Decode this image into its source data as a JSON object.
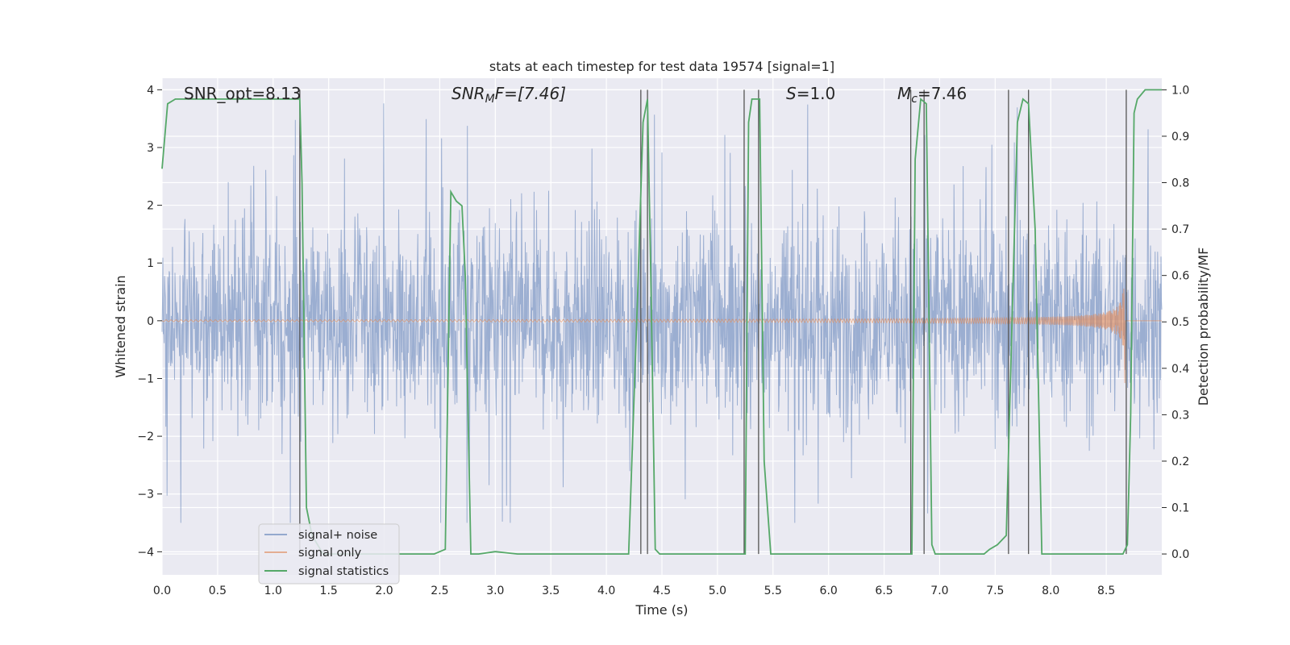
{
  "chart_data": {
    "type": "line",
    "title": "stats at each timestep for test data 19574 [signal=1]",
    "xlabel": "Time (s)",
    "ylabel_left": "Whitened strain",
    "ylabel_right": "Detection probability/MF",
    "xlim": [
      0.0,
      9.0
    ],
    "ylim_left": [
      -4.4,
      4.2
    ],
    "ylim_right": [
      -0.045,
      1.025
    ],
    "x_ticks": [
      0.0,
      0.5,
      1.0,
      1.5,
      2.0,
      2.5,
      3.0,
      3.5,
      4.0,
      4.5,
      5.0,
      5.5,
      6.0,
      6.5,
      7.0,
      7.5,
      8.0,
      8.5
    ],
    "x_tick_labels": [
      "0.0",
      "0.5",
      "1.0",
      "1.5",
      "2.0",
      "2.5",
      "3.0",
      "3.5",
      "4.0",
      "4.5",
      "5.0",
      "5.5",
      "6.0",
      "6.5",
      "7.0",
      "7.5",
      "8.0",
      "8.5"
    ],
    "y_ticks_left": [
      4,
      3,
      2,
      1,
      0,
      -1,
      -2,
      -3,
      -4
    ],
    "y_tick_labels_left": [
      "4",
      "3",
      "2",
      "1",
      "0",
      "−1",
      "−2",
      "−3",
      "−4"
    ],
    "y_ticks_right": [
      1.0,
      0.9,
      0.8,
      0.7,
      0.6,
      0.5,
      0.4,
      0.3,
      0.2,
      0.1,
      0.0
    ],
    "y_tick_labels_right": [
      "1.0",
      "0.9",
      "0.8",
      "0.7",
      "0.6",
      "0.5",
      "0.4",
      "0.3",
      "0.2",
      "0.1",
      "0.0"
    ],
    "annotations": {
      "snr_opt": "SNR_opt=8.13",
      "snr_mf_main": "SNR",
      "snr_mf_sub": "M",
      "snr_mf_rest": "F=[7.46]",
      "s_italic": "S",
      "s_rest": "=1.0",
      "mc_main": "M",
      "mc_sub": "c",
      "mc_rest": "=7.46"
    },
    "legend": {
      "position": "lower left",
      "entries": [
        "signal+ noise",
        "signal only",
        "signal statistics"
      ]
    },
    "series": [
      {
        "name": "signal+ noise",
        "kind": "noise",
        "color": "#4c72b0",
        "amplitude_band": [
          -1.6,
          1.6
        ],
        "extreme_range": [
          -3.5,
          3.8
        ]
      },
      {
        "name": "signal only",
        "kind": "chirp",
        "color": "#dd8452",
        "merger_time": 8.67,
        "peak_amplitude": 1.15
      },
      {
        "name": "signal statistics",
        "kind": "line",
        "axis": "right",
        "color": "#55a868",
        "x": [
          0.0,
          0.05,
          0.12,
          0.2,
          1.0,
          1.24,
          1.26,
          1.3,
          1.35,
          1.45,
          2.0,
          2.45,
          2.55,
          2.6,
          2.65,
          2.7,
          2.73,
          2.78,
          2.85,
          3.0,
          3.2,
          3.5,
          4.0,
          4.2,
          4.28,
          4.33,
          4.37,
          4.4,
          4.44,
          4.48,
          4.55,
          4.8,
          5.0,
          5.2,
          5.25,
          5.28,
          5.31,
          5.38,
          5.42,
          5.48,
          5.55,
          5.6,
          5.8,
          6.0,
          6.5,
          6.75,
          6.78,
          6.83,
          6.88,
          6.93,
          6.96,
          7.0,
          7.2,
          7.4,
          7.45,
          7.52,
          7.6,
          7.7,
          7.75,
          7.8,
          7.86,
          7.92,
          8.0,
          8.3,
          8.65,
          8.69,
          8.72,
          8.75,
          8.78,
          8.85,
          9.0
        ],
        "y": [
          0.83,
          0.97,
          0.98,
          0.98,
          0.98,
          0.98,
          0.8,
          0.1,
          0.04,
          0.0,
          0.0,
          0.0,
          0.01,
          0.78,
          0.76,
          0.75,
          0.6,
          0.0,
          0.0,
          0.005,
          0.0,
          0.0,
          0.0,
          0.0,
          0.55,
          0.93,
          0.98,
          0.6,
          0.01,
          0.0,
          0.0,
          0.0,
          0.0,
          0.0,
          0.0,
          0.93,
          0.98,
          0.98,
          0.2,
          0.0,
          0.0,
          0.0,
          0.0,
          0.0,
          0.0,
          0.0,
          0.85,
          0.98,
          0.97,
          0.02,
          0.0,
          0.0,
          0.0,
          0.0,
          0.01,
          0.02,
          0.04,
          0.93,
          0.98,
          0.97,
          0.7,
          0.0,
          0.0,
          0.0,
          0.0,
          0.02,
          0.3,
          0.95,
          0.98,
          1.0,
          1.0
        ]
      }
    ],
    "vertical_markers": [
      1.24,
      4.31,
      4.37,
      5.24,
      5.37,
      6.74,
      6.86,
      7.62,
      7.8,
      8.68
    ]
  }
}
